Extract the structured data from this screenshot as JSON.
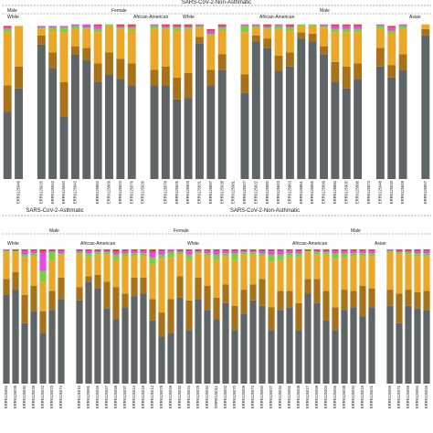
{
  "colors": {
    "dark_gray": "#5f6466",
    "brown": "#a8721a",
    "orange": "#eaa728",
    "green": "#78d13c",
    "magenta": "#e24fe0",
    "red": "#d8452c",
    "blue": "#5d6fc9"
  },
  "chart_data": [
    {
      "type": "bar",
      "stacked": true,
      "title": "SARS-CoV-2-Non-Asthmatic",
      "group_labels": [
        {
          "row": "sex",
          "text": "Male"
        },
        {
          "row": "sex",
          "text": "Female"
        },
        {
          "row": "sex",
          "text": "Male"
        },
        {
          "row": "race",
          "text": "White"
        },
        {
          "row": "race",
          "text": "African-American"
        },
        {
          "row": "race",
          "text": "White"
        },
        {
          "row": "race",
          "text": "African-American"
        },
        {
          "row": "race",
          "text": "Asian"
        }
      ],
      "categories": [
        "",
        "ERR9125949",
        "",
        "ERR9126025",
        "ERR9125942",
        "ERR9125940",
        "ERR9125942",
        "",
        "ERR9125862",
        "ERR9125869",
        "ERR9125923",
        "ERR9125876",
        "ERR9125926",
        "",
        "ERR9125878",
        "ERR9125925",
        "ERR9125903",
        "ERR9125831",
        "ERR9125897",
        "ERR9125928",
        "ERR9125981",
        "ERR9125927",
        "ERR9125822",
        "ERR9125882",
        "ERR9125843",
        "ERR9125863",
        "ERR9125861",
        "ERR9125865",
        "ERR9125899",
        "ERR9125884",
        "ERR9125905",
        "ERR9125888",
        "ERR9125873",
        "ERR9125948",
        "ERR9125933",
        "ERR9125849",
        "",
        "ERR9125857"
      ],
      "series": [
        {
          "name": "",
          "color": "dark_gray",
          "values": [
            43,
            58,
            0,
            86,
            71,
            40,
            80,
            76,
            62,
            67,
            64,
            60,
            0,
            60,
            60,
            51,
            52,
            87,
            60,
            70,
            0,
            55,
            88,
            84,
            69,
            72,
            90,
            88,
            80,
            62,
            58,
            64,
            0,
            72,
            65,
            70,
            0,
            92
          ]
        },
        {
          "name": "",
          "color": "brown",
          "values": [
            17,
            14,
            0,
            6,
            10,
            22,
            5,
            8,
            12,
            14,
            13,
            14,
            0,
            10,
            12,
            14,
            16,
            4,
            10,
            10,
            0,
            12,
            4,
            6,
            10,
            9,
            4,
            5,
            5,
            13,
            14,
            10,
            0,
            12,
            8,
            10,
            0,
            4
          ]
        },
        {
          "name": "",
          "color": "orange",
          "values": [
            34,
            26,
            0,
            4,
            14,
            32,
            11,
            12,
            20,
            17,
            19,
            21,
            0,
            26,
            24,
            30,
            28,
            6,
            22,
            15,
            0,
            27,
            5,
            6,
            17,
            14,
            4,
            5,
            12,
            19,
            22,
            20,
            0,
            12,
            20,
            16,
            0,
            3
          ]
        },
        {
          "name": "",
          "color": "green",
          "values": [
            2,
            0,
            0,
            1,
            2,
            3,
            2,
            1,
            2,
            1,
            1,
            2,
            0,
            2,
            1,
            2,
            1,
            1,
            1,
            2,
            0,
            4,
            1,
            1,
            2,
            2,
            1,
            1,
            1,
            2,
            2,
            2,
            0,
            2,
            2,
            2,
            0,
            0
          ]
        },
        {
          "name": "",
          "color": "magenta",
          "values": [
            1,
            0,
            0,
            1,
            1,
            1,
            1,
            2,
            2,
            0,
            1,
            1,
            0,
            1,
            1,
            1,
            1,
            1,
            2,
            1,
            0,
            1,
            1,
            1,
            1,
            1,
            0,
            0,
            1,
            2,
            2,
            2,
            0,
            1,
            2,
            1,
            0,
            0
          ]
        },
        {
          "name": "",
          "color": "red",
          "values": [
            1,
            0,
            0,
            0,
            0,
            0,
            0,
            0,
            1,
            0,
            1,
            1,
            0,
            0,
            1,
            1,
            1,
            0,
            1,
            1,
            0,
            0,
            0,
            1,
            0,
            1,
            0,
            0,
            0,
            1,
            1,
            1,
            0,
            0,
            1,
            0,
            0,
            0
          ]
        }
      ],
      "ylim": [
        0,
        100
      ]
    },
    {
      "type": "bar",
      "stacked": true,
      "title": "SARS-CoV-2-Asthmatic",
      "title_right": "SARS-CoV-2-Non-Asthmatic",
      "group_labels": [
        {
          "row": "sex",
          "text": "Male"
        },
        {
          "row": "sex",
          "text": "Female"
        },
        {
          "row": "sex",
          "text": "Male"
        },
        {
          "row": "race",
          "text": "White"
        },
        {
          "row": "race",
          "text": "African-American"
        },
        {
          "row": "race",
          "text": "White"
        },
        {
          "row": "race",
          "text": "African-American"
        },
        {
          "row": "race",
          "text": "Asian"
        }
      ],
      "categories": [
        "ERR9126062",
        "ERR9126039",
        "ERR9126030",
        "ERR9126028",
        "ERR9126022",
        "ERR9126023",
        "ERR9126074",
        "",
        "ERR9126010",
        "ERR9125991",
        "ERR9126045",
        "ERR9126047",
        "ERR9126058",
        "ERR9126037",
        "ERR9126014",
        "ERR9126019",
        "ERR9126012",
        "ERR9126078",
        "ERR9126049",
        "ERR9126032",
        "ERR9126024",
        "ERR9126029",
        "ERR9126040",
        "ERR9126011",
        "ERR9126002",
        "ERR9126070",
        "ERR9126009",
        "ERR9126072",
        "ERR9126060",
        "ERR9126027",
        "ERR9126034",
        "ERR9126051",
        "ERR9126008",
        "ERR9126017",
        "ERR9126068",
        "ERR9126004",
        "ERR9126066",
        "ERR9126038",
        "ERR9126020",
        "ERR9126015",
        "ERR9126021",
        "",
        "ERR9126055",
        "ERR9126071",
        "ERR9126059",
        "ERR9126064",
        "ERR9126045"
      ],
      "series": [
        {
          "name": "",
          "color": "dark_gray",
          "values": [
            66,
            70,
            45,
            54,
            38,
            55,
            63,
            0,
            62,
            76,
            71,
            56,
            48,
            57,
            65,
            67,
            47,
            35,
            38,
            64,
            40,
            63,
            55,
            48,
            60,
            40,
            52,
            62,
            58,
            40,
            55,
            57,
            40,
            67,
            60,
            47,
            40,
            55,
            57,
            50,
            57,
            0,
            58,
            45,
            58,
            56,
            55
          ]
        },
        {
          "name": "",
          "color": "brown",
          "values": [
            12,
            13,
            21,
            19,
            16,
            14,
            16,
            0,
            10,
            4,
            10,
            20,
            24,
            10,
            14,
            12,
            16,
            18,
            25,
            16,
            22,
            16,
            18,
            16,
            14,
            18,
            18,
            12,
            20,
            17,
            14,
            12,
            20,
            11,
            18,
            22,
            17,
            15,
            12,
            23,
            14,
            0,
            12,
            22,
            12,
            12,
            14
          ]
        },
        {
          "name": "",
          "color": "orange",
          "values": [
            20,
            15,
            28,
            22,
            22,
            23,
            17,
            0,
            24,
            14,
            15,
            20,
            20,
            28,
            16,
            16,
            26,
            40,
            31,
            16,
            30,
            18,
            22,
            28,
            21,
            34,
            26,
            22,
            17,
            34,
            23,
            25,
            34,
            20,
            18,
            27,
            36,
            24,
            26,
            22,
            24,
            0,
            28,
            30,
            26,
            27,
            26
          ]
        },
        {
          "name": "",
          "color": "green",
          "values": [
            1,
            1,
            2,
            2,
            8,
            6,
            1,
            0,
            2,
            3,
            2,
            2,
            4,
            2,
            2,
            2,
            5,
            3,
            4,
            2,
            4,
            1,
            2,
            4,
            2,
            5,
            2,
            2,
            2,
            5,
            4,
            3,
            3,
            1,
            2,
            2,
            4,
            3,
            2,
            2,
            2,
            0,
            1,
            1,
            2,
            2,
            2
          ]
        },
        {
          "name": "",
          "color": "magenta",
          "values": [
            1,
            0,
            3,
            2,
            14,
            1,
            2,
            0,
            1,
            2,
            1,
            1,
            2,
            2,
            2,
            2,
            4,
            3,
            2,
            1,
            3,
            1,
            2,
            3,
            2,
            2,
            1,
            1,
            2,
            3,
            3,
            2,
            2,
            0,
            1,
            1,
            2,
            2,
            2,
            2,
            2,
            0,
            1,
            1,
            1,
            2,
            2
          ]
        },
        {
          "name": "",
          "color": "red",
          "values": [
            0,
            1,
            1,
            1,
            2,
            1,
            1,
            0,
            1,
            1,
            1,
            1,
            2,
            1,
            1,
            1,
            2,
            1,
            0,
            1,
            1,
            1,
            1,
            1,
            1,
            1,
            1,
            1,
            1,
            1,
            1,
            1,
            1,
            1,
            1,
            1,
            1,
            1,
            1,
            1,
            1,
            0,
            0,
            1,
            1,
            1,
            1
          ]
        }
      ],
      "ylim": [
        0,
        100
      ]
    }
  ]
}
